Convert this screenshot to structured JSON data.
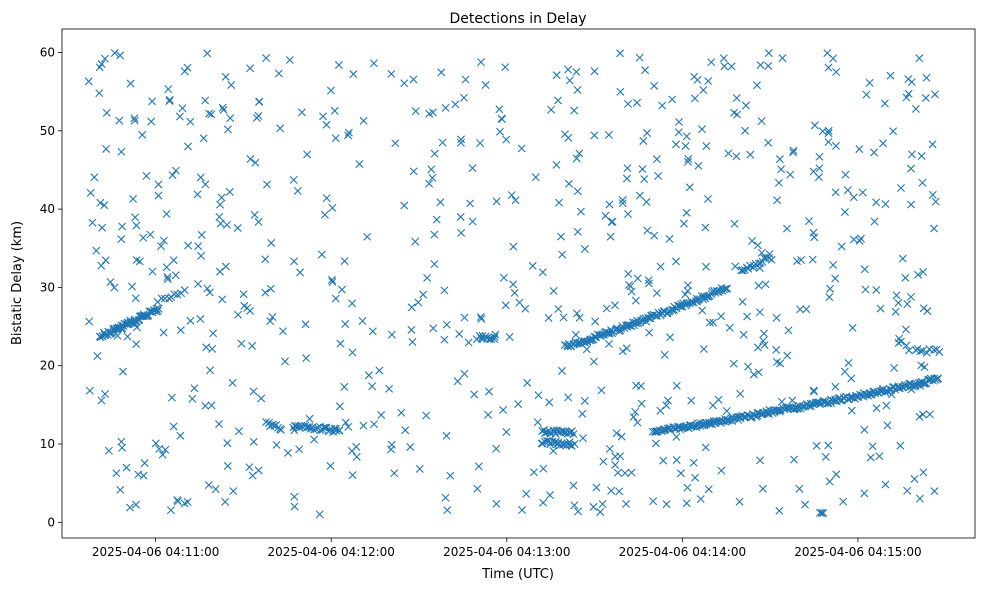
{
  "chart_data": {
    "type": "scatter",
    "title": "Detections in Delay",
    "xlabel": "Time (UTC)",
    "ylabel": "Bistatic Delay (km)",
    "x_axis_kind": "datetime",
    "xlim": [
      "2025-04-06 04:10:28",
      "2025-04-06 04:15:40"
    ],
    "ylim": [
      -2,
      63
    ],
    "grid": false,
    "marker": "x",
    "marker_color": "#1f77b4",
    "x_ticks": [
      {
        "t": "2025-04-06 04:11:00",
        "label": "2025-04-06 04:11:00"
      },
      {
        "t": "2025-04-06 04:12:00",
        "label": "2025-04-06 04:12:00"
      },
      {
        "t": "2025-04-06 04:13:00",
        "label": "2025-04-06 04:13:00"
      },
      {
        "t": "2025-04-06 04:14:00",
        "label": "2025-04-06 04:14:00"
      },
      {
        "t": "2025-04-06 04:15:00",
        "label": "2025-04-06 04:15:00"
      }
    ],
    "y_ticks": [
      {
        "v": 0,
        "label": "0"
      },
      {
        "v": 10,
        "label": "10"
      },
      {
        "v": 20,
        "label": "20"
      },
      {
        "v": 30,
        "label": "30"
      },
      {
        "v": 40,
        "label": "40"
      },
      {
        "v": 50,
        "label": "50"
      },
      {
        "v": 60,
        "label": "60"
      }
    ],
    "tracks": [
      {
        "x": [
          "2025-04-06 04:10:41",
          "2025-04-06 04:11:01"
        ],
        "y": [
          23.8,
          27.3
        ],
        "n": 60
      },
      {
        "x": [
          "2025-04-06 04:11:01",
          "2025-04-06 04:11:10"
        ],
        "y": [
          28.2,
          29.7
        ],
        "n": 9
      },
      {
        "x": [
          "2025-04-06 04:11:38",
          "2025-04-06 04:11:43"
        ],
        "y": [
          12.6,
          12.0
        ],
        "n": 10
      },
      {
        "x": [
          "2025-04-06 04:11:47",
          "2025-04-06 04:12:03"
        ],
        "y": [
          12.3,
          11.7
        ],
        "n": 30
      },
      {
        "x": [
          "2025-04-06 04:12:50",
          "2025-04-06 04:12:56"
        ],
        "y": [
          23.6,
          23.6
        ],
        "n": 12
      },
      {
        "x": [
          "2025-04-06 04:13:12",
          "2025-04-06 04:13:23"
        ],
        "y": [
          10.3,
          9.8
        ],
        "n": 22
      },
      {
        "x": [
          "2025-04-06 04:13:12",
          "2025-04-06 04:13:23"
        ],
        "y": [
          11.6,
          11.4
        ],
        "n": 22
      },
      {
        "x": [
          "2025-04-06 04:13:20",
          "2025-04-06 04:14:15"
        ],
        "y": [
          22.4,
          30.0
        ],
        "n": 130
      },
      {
        "x": [
          "2025-04-06 04:13:50",
          "2025-04-06 04:15:27"
        ],
        "y": [
          11.5,
          18.2
        ],
        "n": 220
      },
      {
        "x": [
          "2025-04-06 04:14:20",
          "2025-04-06 04:14:30"
        ],
        "y": [
          32.0,
          34.0
        ],
        "n": 16
      },
      {
        "x": [
          "2025-04-06 04:15:20",
          "2025-04-06 04:15:28"
        ],
        "y": [
          21.8,
          22.0
        ],
        "n": 8
      }
    ],
    "noise_count": 720
  }
}
